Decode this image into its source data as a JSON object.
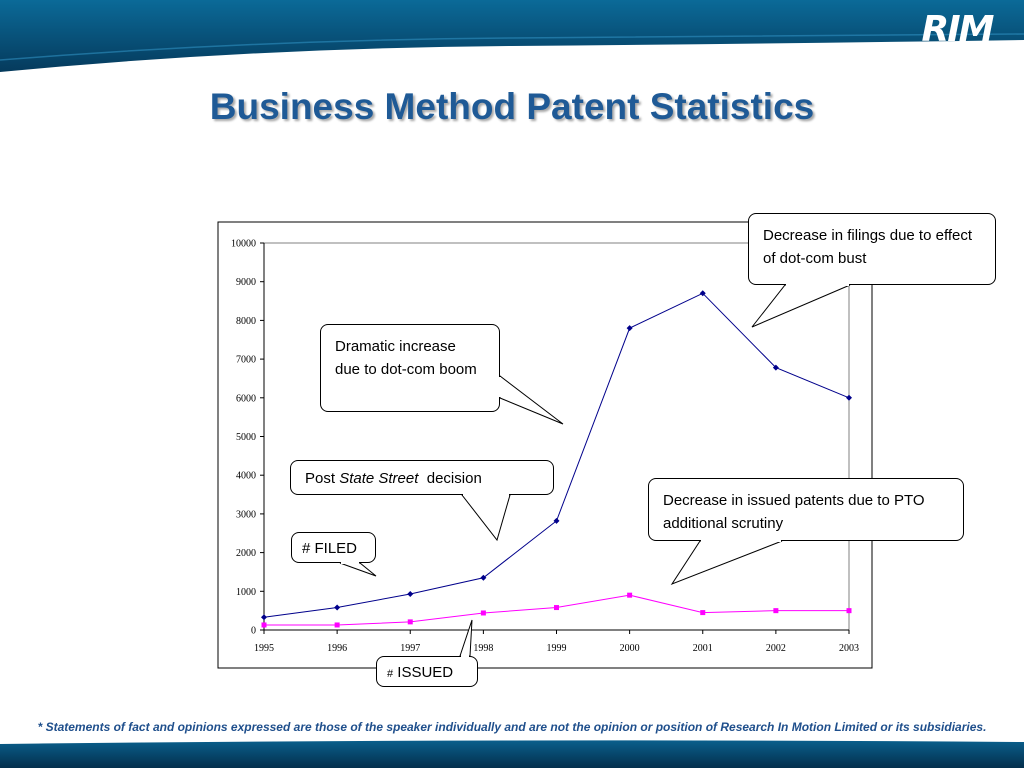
{
  "slide": {
    "logo_text": "RIM",
    "title": "Business Method Patent Statistics",
    "disclaimer": "* Statements of fact and opinions expressed are those of the speaker individually and are not the opinion or position of Research In Motion Limited or its subsidiaries.",
    "colors": {
      "header": "#0a5f8c",
      "title": "#1f5a96",
      "filed": "#00008b",
      "issued": "#ff00ff"
    }
  },
  "callouts": {
    "filing_decrease": "Decrease in filings due to effect of dot-com bust",
    "dotcom_boom": "Dramatic increase due to dot-com boom",
    "state_street_prefix": "Post",
    "state_street_name": "State Street",
    "state_street_suffix": "decision",
    "issued_decrease": "Decrease in issued patents due to PTO additional scrutiny",
    "filed_label": "# FILED",
    "issued_hash": "#",
    "issued_label": "ISSUED"
  },
  "chart_data": {
    "type": "line",
    "categories": [
      "1995",
      "1996",
      "1997",
      "1998",
      "1999",
      "2000",
      "2001",
      "2002",
      "2003"
    ],
    "yticks": [
      "0",
      "1000",
      "2000",
      "3000",
      "4000",
      "5000",
      "6000",
      "7000",
      "8000",
      "9000",
      "10000"
    ],
    "ylim": [
      0,
      10000
    ],
    "series": [
      {
        "name": "# FILED",
        "values": [
          330,
          580,
          930,
          1350,
          2820,
          7800,
          8700,
          6780,
          6000
        ],
        "color": "#00008b",
        "marker": "diamond"
      },
      {
        "name": "# ISSUED",
        "values": [
          130,
          130,
          210,
          440,
          580,
          900,
          450,
          500,
          500
        ],
        "color": "#ff00ff",
        "marker": "square"
      }
    ],
    "grid": false
  }
}
